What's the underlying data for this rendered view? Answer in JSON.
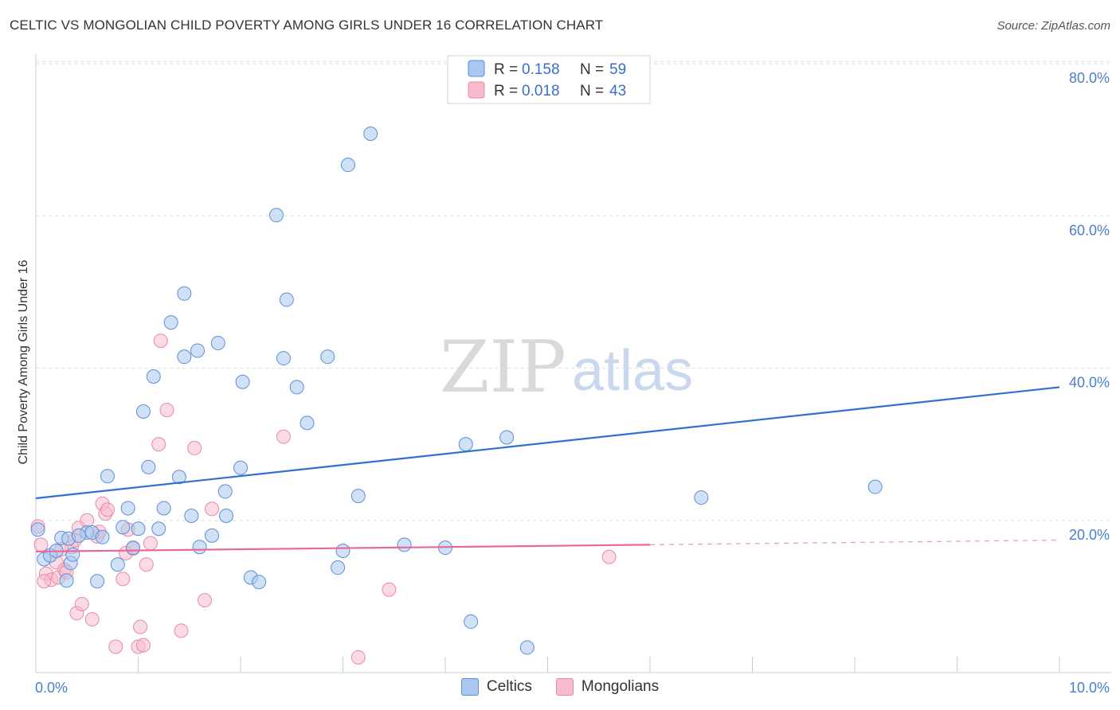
{
  "header": {
    "title": "CELTIC VS MONGOLIAN CHILD POVERTY AMONG GIRLS UNDER 16 CORRELATION CHART",
    "source": "Source: ZipAtlas.com"
  },
  "watermark": {
    "zip": "ZIP",
    "atlas": "atlas"
  },
  "legend": {
    "celtics": {
      "r_label": "R =",
      "r_value": "0.158",
      "n_label": "N =",
      "n_value": "59"
    },
    "mongolians": {
      "r_label": "R =",
      "r_value": "0.018",
      "n_label": "N =",
      "n_value": "43"
    }
  },
  "bottom_legend": {
    "celtics": "Celtics",
    "mongolians": "Mongolians"
  },
  "colors": {
    "celtics_fill": "#aac8ef",
    "celtics_stroke": "#5b8fd6",
    "celtics_line": "#2f6fcf",
    "mongolians_fill": "#f6bccd",
    "mongolians_stroke": "#e88aa7",
    "mongolians_line": "#e8689a",
    "tick": "#4a7fcf",
    "grid": "#dddddd"
  },
  "chart_data": {
    "type": "scatter",
    "title": "CELTIC VS MONGOLIAN CHILD POVERTY AMONG GIRLS UNDER 16 CORRELATION CHART",
    "xlabel": "",
    "ylabel": "Child Poverty Among Girls Under 16",
    "xlim": [
      0,
      10
    ],
    "ylim": [
      0,
      80
    ],
    "x_tick_labels": [
      "0.0%",
      "10.0%"
    ],
    "y_ticks": [
      20,
      40,
      60,
      80
    ],
    "y_tick_labels": [
      "20.0%",
      "40.0%",
      "60.0%",
      "80.0%"
    ],
    "grid": true,
    "legend_position": "top-center",
    "series": [
      {
        "name": "Celtics",
        "r": 0.158,
        "n": 59,
        "trend": {
          "x": [
            0,
            10
          ],
          "y": [
            22.9,
            37.5
          ],
          "dashed_from": null
        },
        "points": [
          [
            0.02,
            18.8
          ],
          [
            0.08,
            14.9
          ],
          [
            0.14,
            15.4
          ],
          [
            0.2,
            16.0
          ],
          [
            0.25,
            17.7
          ],
          [
            0.32,
            17.6
          ],
          [
            0.34,
            14.4
          ],
          [
            0.36,
            15.5
          ],
          [
            0.3,
            12.1
          ],
          [
            0.5,
            18.4
          ],
          [
            0.55,
            18.4
          ],
          [
            0.65,
            17.8
          ],
          [
            0.7,
            25.8
          ],
          [
            0.6,
            12.0
          ],
          [
            0.8,
            14.2
          ],
          [
            0.85,
            19.1
          ],
          [
            0.9,
            21.6
          ],
          [
            0.95,
            16.4
          ],
          [
            1.0,
            18.9
          ],
          [
            1.05,
            34.3
          ],
          [
            1.1,
            27.0
          ],
          [
            1.15,
            38.9
          ],
          [
            1.2,
            18.9
          ],
          [
            1.25,
            21.6
          ],
          [
            1.32,
            46.0
          ],
          [
            1.4,
            25.7
          ],
          [
            1.45,
            49.8
          ],
          [
            1.45,
            41.5
          ],
          [
            1.52,
            20.6
          ],
          [
            1.6,
            16.5
          ],
          [
            1.58,
            42.3
          ],
          [
            1.72,
            18.0
          ],
          [
            1.78,
            43.3
          ],
          [
            1.85,
            23.8
          ],
          [
            1.86,
            20.6
          ],
          [
            2.0,
            26.9
          ],
          [
            2.02,
            38.2
          ],
          [
            2.1,
            12.5
          ],
          [
            2.18,
            11.9
          ],
          [
            2.35,
            60.1
          ],
          [
            2.42,
            41.3
          ],
          [
            2.45,
            49.0
          ],
          [
            2.55,
            37.5
          ],
          [
            2.65,
            32.8
          ],
          [
            2.85,
            41.5
          ],
          [
            2.95,
            13.8
          ],
          [
            3.0,
            16.0
          ],
          [
            3.05,
            66.7
          ],
          [
            3.15,
            23.2
          ],
          [
            3.27,
            70.8
          ],
          [
            3.6,
            16.8
          ],
          [
            4.0,
            16.4
          ],
          [
            4.2,
            30.0
          ],
          [
            4.25,
            6.7
          ],
          [
            4.6,
            30.9
          ],
          [
            4.8,
            3.3
          ],
          [
            6.5,
            23.0
          ],
          [
            8.2,
            24.4
          ],
          [
            0.42,
            18.0
          ]
        ]
      },
      {
        "name": "Mongolians",
        "r": 0.018,
        "n": 43,
        "trend": {
          "x": [
            0,
            10
          ],
          "y": [
            15.9,
            17.4
          ],
          "dashed_from": 6.0
        },
        "points": [
          [
            0.02,
            19.2
          ],
          [
            0.05,
            16.8
          ],
          [
            0.1,
            13.0
          ],
          [
            0.15,
            12.2
          ],
          [
            0.2,
            14.5
          ],
          [
            0.22,
            12.5
          ],
          [
            0.28,
            13.5
          ],
          [
            0.3,
            13.2
          ],
          [
            0.35,
            16.5
          ],
          [
            0.38,
            17.4
          ],
          [
            0.4,
            7.8
          ],
          [
            0.42,
            19.0
          ],
          [
            0.45,
            9.0
          ],
          [
            0.5,
            20.0
          ],
          [
            0.55,
            7.0
          ],
          [
            0.6,
            17.9
          ],
          [
            0.62,
            18.5
          ],
          [
            0.65,
            22.2
          ],
          [
            0.68,
            20.9
          ],
          [
            0.7,
            21.4
          ],
          [
            0.78,
            3.4
          ],
          [
            0.85,
            12.3
          ],
          [
            0.88,
            15.7
          ],
          [
            0.9,
            18.8
          ],
          [
            0.95,
            16.3
          ],
          [
            1.0,
            3.4
          ],
          [
            1.02,
            6.0
          ],
          [
            1.05,
            3.6
          ],
          [
            1.08,
            14.2
          ],
          [
            1.12,
            17.0
          ],
          [
            1.2,
            30.0
          ],
          [
            1.22,
            43.6
          ],
          [
            1.28,
            34.5
          ],
          [
            1.42,
            5.5
          ],
          [
            1.55,
            29.5
          ],
          [
            1.65,
            9.5
          ],
          [
            1.72,
            21.5
          ],
          [
            2.42,
            31.0
          ],
          [
            3.15,
            2.0
          ],
          [
            3.45,
            10.9
          ],
          [
            5.6,
            15.2
          ],
          [
            0.08,
            12.0
          ],
          [
            0.25,
            16.2
          ]
        ]
      }
    ]
  }
}
